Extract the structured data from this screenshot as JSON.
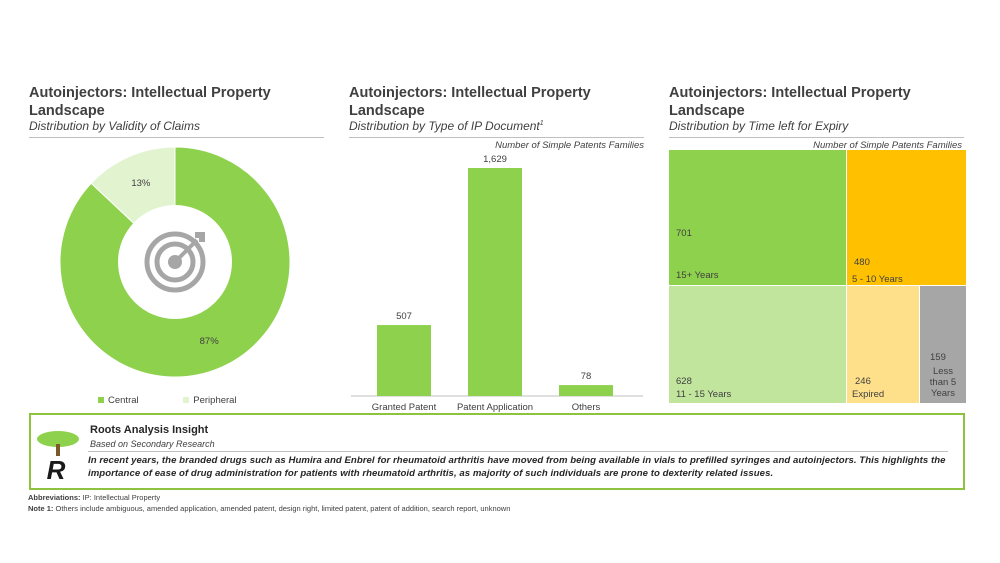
{
  "colors": {
    "green": "#8ed14d",
    "light_green": "#c2e59e",
    "pale_green": "#e2f3cf",
    "orange": "#ffc000",
    "yellow": "#ffe08a",
    "gray": "#a6a6a6",
    "border_green": "#8dc33f"
  },
  "panels": [
    {
      "title_line1": "Autoinjectors: Intellectual Property",
      "title_line2": "Landscape",
      "subtitle": "Distribution by Validity of Claims"
    },
    {
      "title_line1": "Autoinjectors: Intellectual Property",
      "title_line2": "Landscape",
      "subtitle": "Distribution by Type of IP Document",
      "subtitle_sup": "1",
      "axis_note": "Number of Simple Patents Families"
    },
    {
      "title_line1": "Autoinjectors: Intellectual Property",
      "title_line2": "Landscape",
      "subtitle": "Distribution by Time left for Expiry",
      "axis_note": "Number of Simple Patents Families"
    }
  ],
  "chart_data": [
    {
      "type": "pie",
      "title": "Distribution by Validity of Claims",
      "categories": [
        "Central",
        "Peripheral"
      ],
      "values": [
        87,
        13
      ],
      "labels": [
        "87%",
        "13%"
      ],
      "legend": "bottom",
      "center_icon": "target-icon"
    },
    {
      "type": "bar",
      "title": "Distribution by Type of IP Document",
      "categories": [
        "Granted Patent",
        "Patent Application",
        "Others"
      ],
      "values": [
        507,
        1629,
        78
      ],
      "labels": [
        "507",
        "1,629",
        "78"
      ],
      "ylim": [
        0,
        1629
      ]
    },
    {
      "type": "treemap",
      "title": "Distribution by Time left for Expiry",
      "categories": [
        "15+ Years",
        "5 - 10 Years",
        "11 - 15 Years",
        "Expired",
        "Less than 5 Years"
      ],
      "values": [
        701,
        480,
        628,
        246,
        159
      ],
      "labels": [
        "701",
        "480",
        "628",
        "246",
        "159"
      ]
    }
  ],
  "insight": {
    "title": "Roots Analysis Insight",
    "subtitle": "Based on Secondary Research",
    "logo_letter": "R",
    "body": "In recent years, the branded drugs such as Humira and Enbrel for rheumatoid arthritis have moved from being available in vials to prefilled syringes and autoinjectors. This highlights the importance of ease of drug administration for patients with rheumatoid arthritis, as majority of such individuals are prone to dexterity related issues."
  },
  "footer": {
    "abbr_label": "Abbreviations:",
    "abbr_text": " IP: Intellectual Property",
    "note_label": "Note 1:",
    "note_text": " Others include ambiguous, amended application, amended patent, design right, limited patent, patent of addition, search report, unknown"
  }
}
